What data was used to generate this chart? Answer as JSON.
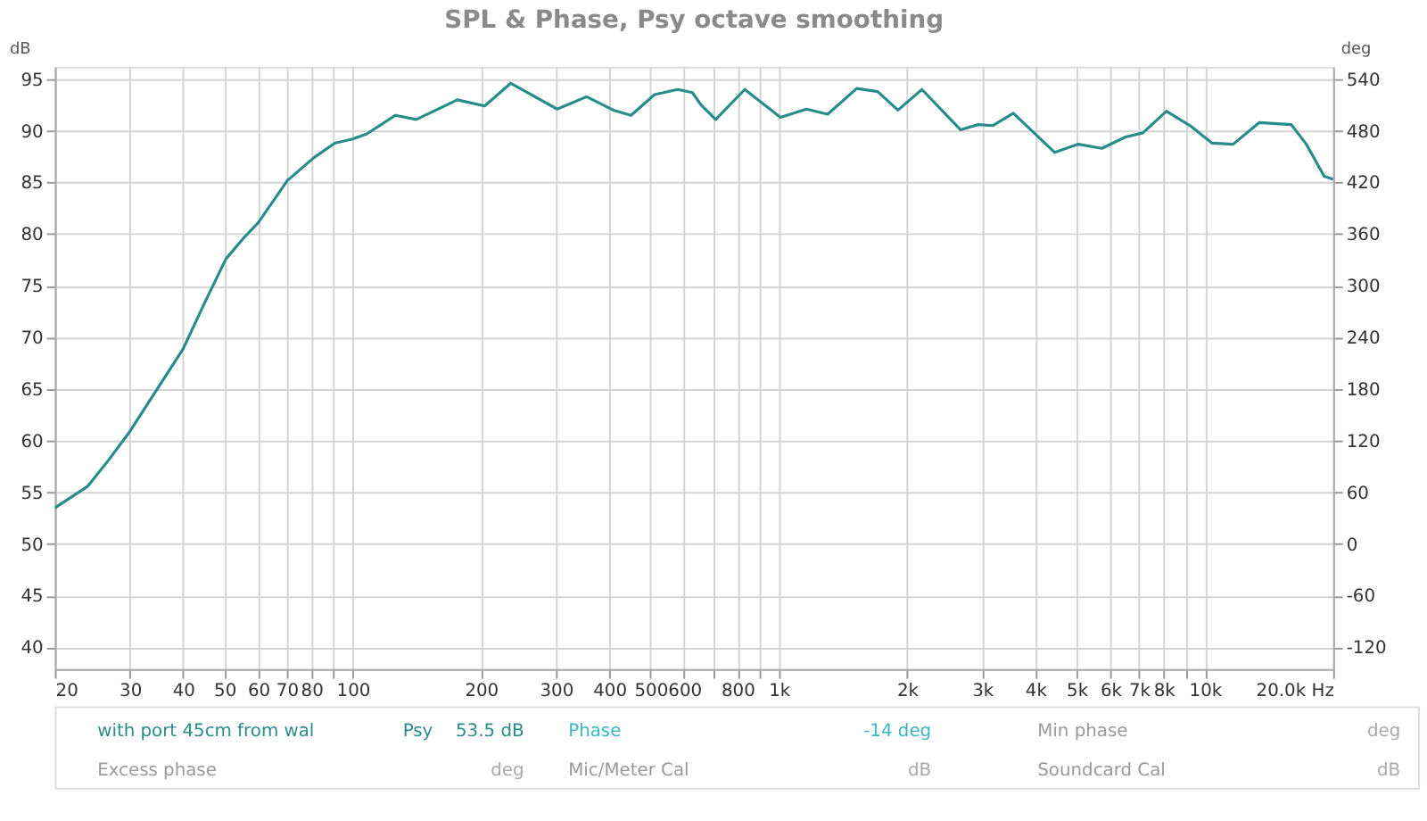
{
  "chart_data": {
    "type": "line",
    "title": "SPL & Phase, Psy octave smoothing",
    "ylabel": "dB",
    "y2label": "deg",
    "x": [
      20,
      23.9,
      26.7,
      30,
      40,
      45.1,
      50.4,
      55.4,
      60,
      70.3,
      81.1,
      90.7,
      100,
      108,
      126,
      141,
      176,
      204,
      235,
      302,
      354,
      409,
      450,
      511,
      579,
      627,
      657,
      711,
      832,
      1009,
      1162,
      1302,
      1524,
      1706,
      1904,
      2167,
      2669,
      2934,
      3175,
      3552,
      4442,
      5045,
      5732,
      6513,
      7154,
      8122,
      9233,
      10400,
      11650,
      13420,
      15950,
      17300,
      19050,
      20000
    ],
    "series": [
      {
        "name": "with port 45cm from wal",
        "color": "#288c8a",
        "values": [
          53.5,
          55.6,
          58.1,
          60.9,
          68.9,
          73.5,
          77.6,
          79.6,
          81.1,
          85.2,
          87.4,
          88.8,
          89.2,
          89.7,
          91.5,
          91.1,
          93.0,
          92.4,
          94.6,
          92.1,
          93.3,
          92.0,
          91.5,
          93.5,
          94.0,
          93.7,
          92.5,
          91.1,
          94.0,
          91.3,
          92.1,
          91.6,
          94.1,
          93.8,
          92.0,
          94.0,
          90.1,
          90.6,
          90.5,
          91.7,
          87.9,
          88.7,
          88.3,
          89.4,
          89.8,
          91.9,
          90.5,
          88.8,
          88.7,
          90.8,
          90.6,
          88.7,
          85.6,
          85.3
        ]
      }
    ],
    "log": "x",
    "xlim": [
      20,
      20000
    ],
    "xticks": [
      20,
      30,
      40,
      50,
      60,
      70,
      80,
      {
        "value": 90,
        "label": null
      },
      100,
      200,
      300,
      400,
      500,
      600,
      {
        "value": 700,
        "label": null
      },
      800,
      {
        "value": 900,
        "label": null
      },
      {
        "value": 1000,
        "label": "1k"
      },
      {
        "value": 2000,
        "label": "2k"
      },
      {
        "value": 3000,
        "label": "3k"
      },
      {
        "value": 4000,
        "label": "4k"
      },
      {
        "value": 5000,
        "label": "5k"
      },
      {
        "value": 6000,
        "label": "6k"
      },
      {
        "value": 7000,
        "label": "7k"
      },
      {
        "value": 8000,
        "label": "8k"
      },
      {
        "value": 9000,
        "label": null
      },
      {
        "value": 10000,
        "label": "10k"
      },
      {
        "value": 20000,
        "label": "20.0k Hz"
      }
    ],
    "ylim": [
      37.9,
      96.2
    ],
    "yticks": [
      40,
      45,
      50,
      55,
      60,
      65,
      70,
      75,
      80,
      85,
      90,
      95
    ],
    "y2lim": [
      -145.2,
      554.4
    ],
    "y2ticks": [
      -120,
      -60,
      0,
      60,
      120,
      180,
      240,
      300,
      360,
      420,
      480,
      540
    ],
    "grid": true,
    "legend": "bottom",
    "annotations": [
      "Psy",
      "53.5 dB",
      "Phase",
      "-14 deg",
      "Min phase",
      "deg",
      "Excess phase",
      "deg",
      "Mic/Meter Cal",
      "dB",
      "Soundcard Cal",
      "dB"
    ]
  }
}
